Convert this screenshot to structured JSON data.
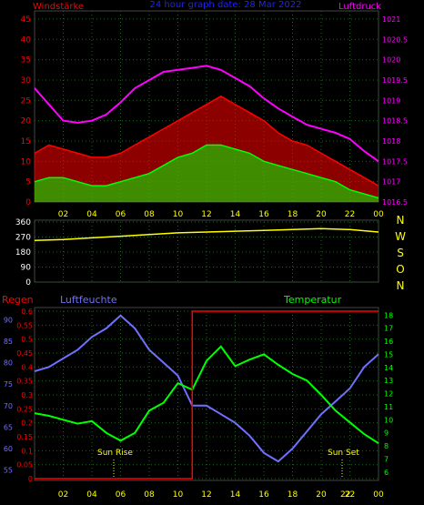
{
  "header": {
    "left_label": "Windstärke",
    "center_label": "24 hour graph date: 28 Mar 2022",
    "right_label": "Luftdruck"
  },
  "colors": {
    "wind_gust": "#ff0000",
    "wind_avg": "#00ff00",
    "pressure": "#ff00ff",
    "direction": "#ffff00",
    "humidity": "#7070ff",
    "temperature": "#00ff00",
    "rain": "#ff0000",
    "grid": "#2a5a2a",
    "axis_text_time": "#ffff00"
  },
  "time_ticks": [
    "02",
    "04",
    "06",
    "08",
    "10",
    "12",
    "14",
    "16",
    "18",
    "20",
    "22",
    "00"
  ],
  "chart_data": [
    {
      "type": "line",
      "title": "Windstärke / Luftdruck",
      "y_left_label": "Windstärke",
      "y_right_label": "Luftdruck",
      "ylim_left": [
        0,
        47
      ],
      "y_left_ticks": [
        "0",
        "5",
        "10",
        "15",
        "20",
        "25",
        "30",
        "35",
        "40",
        "45"
      ],
      "ylim_right": [
        1016.5,
        1021.2
      ],
      "y_right_ticks": [
        "1016.5",
        "1017",
        "1017.5",
        "1018",
        "1018.5",
        "1019",
        "1019.5",
        "1020",
        "1020.5",
        "1021"
      ],
      "x_hours": [
        0,
        1,
        2,
        3,
        4,
        5,
        6,
        7,
        8,
        9,
        10,
        11,
        12,
        13,
        14,
        15,
        16,
        17,
        18,
        19,
        20,
        21,
        22,
        23,
        24
      ],
      "series": [
        {
          "name": "wind_gust",
          "axis": "left",
          "values": [
            12,
            14,
            13,
            12,
            11,
            11,
            12,
            14,
            16,
            18,
            20,
            22,
            24,
            26,
            24,
            22,
            20,
            17,
            15,
            14,
            12,
            10,
            8,
            6,
            4
          ]
        },
        {
          "name": "wind_avg",
          "axis": "left",
          "values": [
            5,
            6,
            6,
            5,
            4,
            4,
            5,
            6,
            7,
            9,
            11,
            12,
            14,
            14,
            13,
            12,
            10,
            9,
            8,
            7,
            6,
            5,
            3,
            2,
            1
          ]
        },
        {
          "name": "pressure",
          "axis": "right",
          "values": [
            1019.3,
            1018.9,
            1018.5,
            1018.45,
            1018.5,
            1018.65,
            1018.95,
            1019.3,
            1019.5,
            1019.7,
            1019.75,
            1019.8,
            1019.85,
            1019.75,
            1019.55,
            1019.35,
            1019.05,
            1018.8,
            1018.6,
            1018.4,
            1018.3,
            1018.2,
            1018.05,
            1017.75,
            1017.5
          ]
        }
      ]
    },
    {
      "type": "line",
      "title": "Windrichtung",
      "ylim": [
        0,
        360
      ],
      "y_ticks": [
        "0",
        "90",
        "180",
        "270",
        "360"
      ],
      "right_labels": [
        "N",
        "W",
        "S",
        "O",
        "N"
      ],
      "x_hours": [
        0,
        2,
        4,
        6,
        8,
        10,
        12,
        14,
        16,
        18,
        20,
        22,
        24
      ],
      "series": [
        {
          "name": "direction",
          "values": [
            250,
            255,
            265,
            275,
            285,
            295,
            300,
            305,
            310,
            315,
            320,
            315,
            300
          ]
        }
      ]
    },
    {
      "type": "line",
      "title": "Regen / Luftfeuchte / Temperatur",
      "labels": {
        "rain": "Regen",
        "humidity": "Luftfeuchte",
        "temperature": "Temperatur"
      },
      "ylim_rain": [
        0,
        0.6
      ],
      "rain_ticks": [
        "0",
        "0.05",
        "0.1",
        "0.15",
        "0.2",
        "0.25",
        "0.3",
        "0.35",
        "0.4",
        "0.45",
        "0.5",
        "0.55",
        "0.6"
      ],
      "ylim_humidity": [
        53,
        92
      ],
      "humidity_ticks": [
        "55",
        "60",
        "65",
        "70",
        "75",
        "80",
        "85",
        "90"
      ],
      "ylim_temperature": [
        5.5,
        18.3
      ],
      "temperature_ticks": [
        "6",
        "7",
        "8",
        "9",
        "10",
        "11",
        "12",
        "13",
        "14",
        "15",
        "16",
        "17",
        "18"
      ],
      "annotations": [
        "Sun Rise",
        "Sun Set",
        "22"
      ],
      "x_hours": [
        0,
        1,
        2,
        3,
        4,
        5,
        6,
        7,
        8,
        9,
        10,
        11,
        12,
        13,
        14,
        15,
        16,
        17,
        18,
        19,
        20,
        21,
        22,
        23,
        24
      ],
      "series": [
        {
          "name": "humidity",
          "values": [
            78,
            79,
            81,
            83,
            86,
            88,
            91,
            88,
            83,
            80,
            77,
            70,
            70,
            68,
            66,
            63,
            59,
            57,
            60,
            64,
            68,
            71,
            74,
            79,
            82
          ]
        },
        {
          "name": "temperature",
          "values": [
            10.5,
            10.3,
            10.0,
            9.7,
            9.9,
            9.0,
            8.4,
            9.0,
            10.7,
            11.3,
            12.8,
            12.3,
            14.5,
            15.6,
            14.1,
            14.6,
            15.0,
            14.2,
            13.5,
            13.0,
            11.9,
            10.7,
            9.8,
            8.9,
            8.2
          ]
        },
        {
          "name": "rain",
          "values": [
            0,
            0,
            0,
            0,
            0,
            0,
            0,
            0,
            0,
            0,
            0,
            0.6,
            0.6,
            0.6,
            0.6,
            0.6,
            0.6,
            0.6,
            0.6,
            0.6,
            0.6,
            0.6,
            0.6,
            0.6,
            0.6
          ]
        }
      ]
    }
  ]
}
